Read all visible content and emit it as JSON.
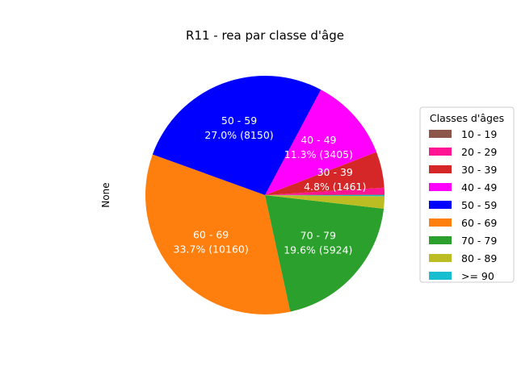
{
  "chart_data": {
    "type": "pie",
    "title": "R11 - rea par classe d'âge",
    "ylabel": "None",
    "legend_title": "Classes d'âges",
    "legend_position": "right",
    "slices": [
      {
        "label": "10 - 19",
        "value": 30,
        "color": "#8c564b",
        "text": ""
      },
      {
        "label": "20 - 29",
        "value": 270,
        "color": "#ff1493",
        "text": ""
      },
      {
        "label": "30 - 39",
        "value": 1461,
        "color": "#d62728",
        "text": "30 - 39\n4.8% (1461)"
      },
      {
        "label": "40 - 49",
        "value": 3405,
        "color": "#ff00ff",
        "text": "40 - 49\n11.3% (3405)"
      },
      {
        "label": "50 - 59",
        "value": 8150,
        "color": "#0000ff",
        "text": "50 - 59\n27.0% (8150)"
      },
      {
        "label": "60 - 69",
        "value": 10160,
        "color": "#ff7f0e",
        "text": "60 - 69\n33.7% (10160)"
      },
      {
        "label": "70 - 79",
        "value": 5924,
        "color": "#2ca02c",
        "text": "70 - 79\n19.6% (5924)"
      },
      {
        "label": "80 - 89",
        "value": 500,
        "color": "#bcbd22",
        "text": ""
      },
      {
        "label": ">= 90",
        "value": 45,
        "color": "#17becf",
        "text": ""
      }
    ]
  }
}
